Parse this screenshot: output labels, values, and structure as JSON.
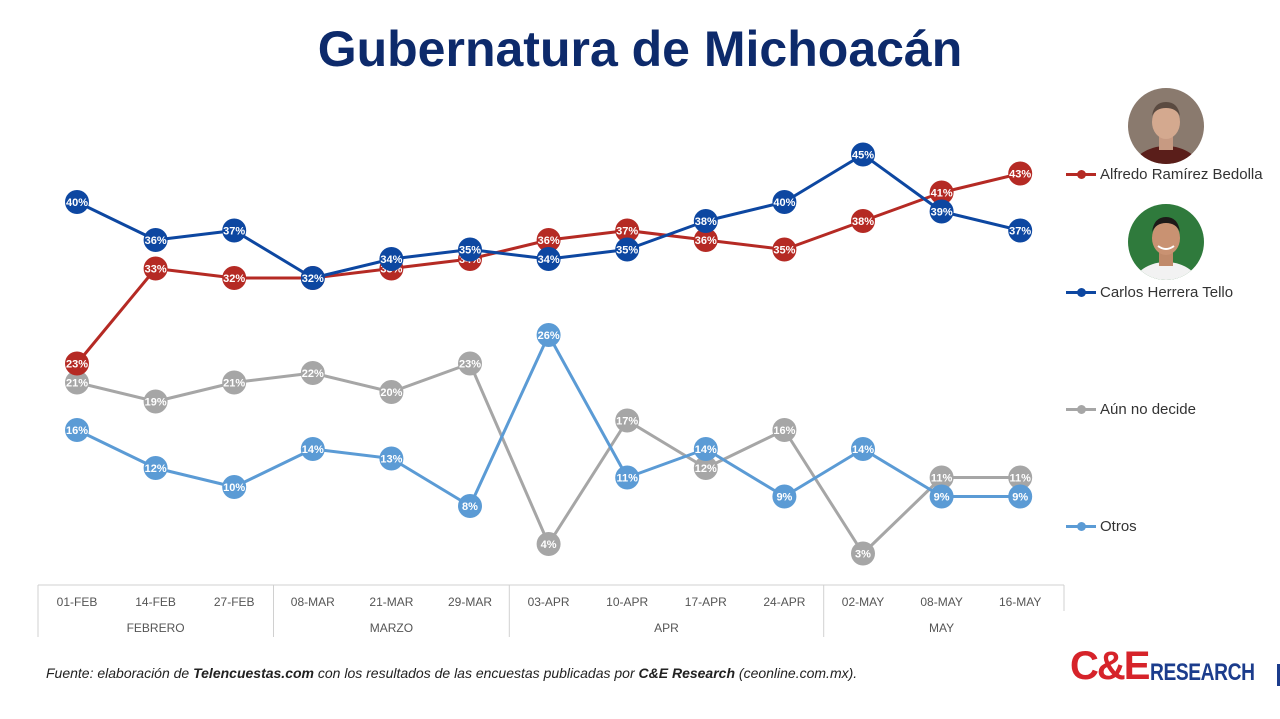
{
  "title": "Gubernatura de Michoacán",
  "source": {
    "prefix": "Fuente: elaboración de ",
    "site": "Telencuestas.com",
    "middle": " con los resultados de las encuestas publicadas por ",
    "org": "C&E Research",
    "suffix": " (ceonline.com.mx)."
  },
  "logo": {
    "ce": "C&E",
    "research": "RESEARCH"
  },
  "colors": {
    "red": "#b52a24",
    "blue": "#0d47a1",
    "gray": "#a6a6a6",
    "lightblue": "#5b9bd5",
    "title": "#0d2a6b"
  },
  "chart_data": {
    "type": "line",
    "title": "Gubernatura de Michoacán",
    "categories": [
      "01-FEB",
      "14-FEB",
      "27-FEB",
      "08-MAR",
      "21-MAR",
      "29-MAR",
      "03-APR",
      "10-APR",
      "17-APR",
      "24-APR",
      "02-MAY",
      "08-MAY",
      "16-MAY"
    ],
    "groups": [
      {
        "label": "FEBRERO",
        "span": 3
      },
      {
        "label": "MARZO",
        "span": 3
      },
      {
        "label": "APR",
        "span": 4
      },
      {
        "label": "MAY",
        "span": 3
      }
    ],
    "ylim": [
      0,
      48
    ],
    "grid": false,
    "legend_position": "right",
    "series": [
      {
        "name": "Alfredo Ramírez Bedolla",
        "color": "#b52a24",
        "values": [
          23,
          33,
          32,
          32,
          33,
          34,
          36,
          37,
          36,
          35,
          38,
          41,
          43
        ]
      },
      {
        "name": "Carlos Herrera Tello",
        "color": "#0d47a1",
        "values": [
          40,
          36,
          37,
          32,
          34,
          35,
          34,
          35,
          38,
          40,
          45,
          39,
          37
        ]
      },
      {
        "name": "Aún no decide",
        "color": "#a6a6a6",
        "values": [
          21,
          19,
          21,
          22,
          20,
          23,
          4,
          17,
          12,
          16,
          3,
          11,
          11
        ]
      },
      {
        "name": "Otros",
        "color": "#5b9bd5",
        "values": [
          16,
          12,
          10,
          14,
          13,
          8,
          26,
          11,
          14,
          9,
          14,
          9,
          9
        ]
      }
    ]
  }
}
